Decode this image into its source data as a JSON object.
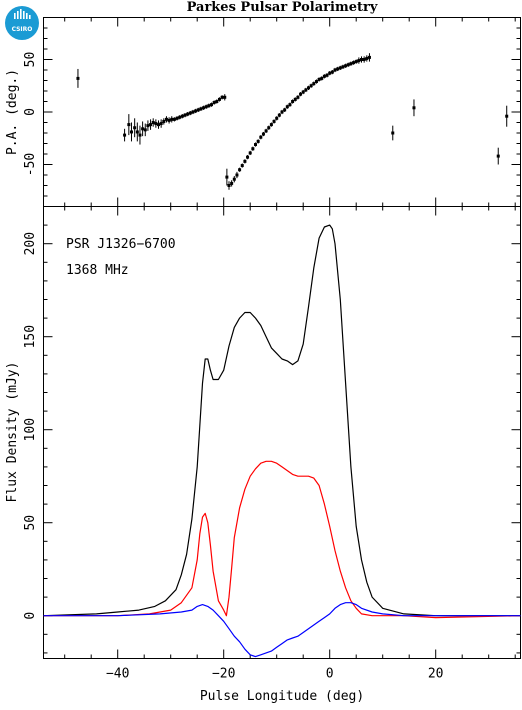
{
  "logo": {
    "text": "CSIRO",
    "color": "#1b9bd4"
  },
  "chart_data": [
    {
      "type": "scatter",
      "title": "Parkes Pulsar Polarimetry",
      "xlabel": "",
      "ylabel": "P.A. (deg.)",
      "xlim": [
        -54,
        36
      ],
      "ylim": [
        -90,
        90
      ],
      "yticks": [
        -50,
        0,
        50
      ],
      "series": [
        {
          "color": "#000000",
          "x": [
            -47.5,
            -38.7,
            -37.9,
            -37.4,
            -36.8,
            -36.3,
            -35.8,
            -35.3,
            -34.8,
            -34.3,
            -33.8,
            -33.3,
            -32.8,
            -32.3,
            -31.8,
            -31.3,
            -30.8,
            -30.3,
            -29.8,
            -29.3,
            -28.8,
            -28.3,
            -27.8,
            -27.3,
            -26.8,
            -26.3,
            -25.8,
            -25.3,
            -24.8,
            -24.3,
            -23.8,
            -23.3,
            -22.8,
            -22.3,
            -21.8,
            -21.3,
            -20.8,
            -20.3,
            -19.8,
            -19.4,
            -19.0,
            -18.5,
            -18.0,
            -17.5,
            -17.0,
            -16.5,
            -16.0,
            -15.5,
            -15.0,
            -14.5,
            -14.0,
            -13.5,
            -13.0,
            -12.5,
            -12.0,
            -11.5,
            -11.0,
            -10.5,
            -10.0,
            -9.5,
            -9.0,
            -8.5,
            -8.0,
            -7.5,
            -7.0,
            -6.5,
            -6.0,
            -5.5,
            -5.0,
            -4.5,
            -4.0,
            -3.5,
            -3.0,
            -2.5,
            -2.0,
            -1.5,
            -1.0,
            -0.5,
            0.0,
            0.5,
            1.0,
            1.5,
            2.0,
            2.5,
            3.0,
            3.5,
            4.0,
            4.5,
            5.0,
            5.5,
            6.0,
            6.5,
            7.0,
            7.5,
            11.9,
            15.9,
            31.8,
            33.4
          ],
          "y": [
            32,
            -22,
            -12,
            -19,
            -15,
            -19,
            -22,
            -16,
            -17,
            -13,
            -12,
            -10,
            -11,
            -12,
            -11,
            -9,
            -7,
            -8,
            -7,
            -7,
            -6,
            -5,
            -4,
            -3,
            -2,
            -1,
            0,
            1,
            2,
            3,
            4,
            5,
            6,
            7,
            9,
            10,
            12,
            14,
            14,
            -62,
            -70,
            -68,
            -64,
            -60,
            -55,
            -51,
            -47,
            -43,
            -39,
            -35,
            -31,
            -28,
            -24,
            -21,
            -18,
            -15,
            -12,
            -9,
            -6,
            -3,
            0,
            2,
            5,
            7,
            10,
            12,
            14,
            17,
            19,
            21,
            23,
            25,
            27,
            29,
            31,
            32,
            34,
            35,
            37,
            38,
            40,
            41,
            42,
            43,
            44,
            45,
            46,
            47,
            48,
            49,
            50,
            50,
            51,
            52,
            -20,
            4,
            -42,
            -4
          ],
          "err": [
            9,
            6,
            10,
            9,
            9,
            9,
            9,
            7,
            6,
            5,
            5,
            4,
            4,
            4,
            4,
            3,
            3,
            3,
            3,
            2,
            2,
            2,
            2,
            2,
            2,
            2,
            2,
            2,
            2,
            2,
            2,
            2,
            2,
            2,
            2,
            2,
            2,
            2,
            3,
            8,
            4,
            3,
            3,
            3,
            2,
            2,
            2,
            2,
            2,
            2,
            2,
            2,
            2,
            2,
            2,
            2,
            2,
            2,
            2,
            2,
            2,
            2,
            2,
            2,
            2,
            2,
            2,
            2,
            2,
            2,
            2,
            2,
            2,
            2,
            2,
            2,
            2,
            2,
            2,
            2,
            2,
            2,
            2,
            2,
            2,
            2,
            2,
            2,
            2,
            3,
            3,
            3,
            3,
            4,
            7,
            8,
            8,
            10
          ]
        }
      ]
    },
    {
      "type": "line",
      "title": "",
      "xlabel": "Pulse Longitude (deg)",
      "ylabel": "Flux Density (mJy)",
      "xlim": [
        -54,
        36
      ],
      "ylim": [
        -23,
        220
      ],
      "xticks": [
        -40,
        -20,
        0,
        20
      ],
      "yticks": [
        0,
        50,
        100,
        150,
        200
      ],
      "annotations": [
        "PSR J1326−6700",
        "1368 MHz"
      ],
      "series": [
        {
          "color": "#000000",
          "x": [
            -54,
            -44,
            -40,
            -36,
            -33,
            -31,
            -29,
            -28,
            -27,
            -26,
            -25,
            -24.5,
            -24,
            -23.5,
            -23,
            -22.5,
            -22,
            -21,
            -20,
            -19,
            -18,
            -17,
            -16,
            -15,
            -14,
            -13,
            -12,
            -11,
            -10,
            -9,
            -8,
            -7,
            -6,
            -5,
            -4,
            -3,
            -2,
            -1,
            0,
            0.5,
            1,
            2,
            3,
            4,
            5,
            6,
            7,
            8,
            10,
            14,
            20,
            30,
            36
          ],
          "y": [
            0,
            1,
            2,
            3,
            5,
            8,
            14,
            22,
            33,
            52,
            80,
            102,
            125,
            138,
            138,
            132,
            127,
            127,
            132,
            145,
            155,
            160,
            163,
            163,
            160,
            156,
            150,
            144,
            141,
            138,
            137,
            135,
            137,
            146,
            166,
            187,
            203,
            209,
            210,
            208,
            200,
            170,
            125,
            80,
            48,
            30,
            18,
            10,
            4,
            1,
            0,
            0,
            0
          ]
        },
        {
          "color": "#ff0000",
          "x": [
            -54,
            -40,
            -34,
            -30,
            -28,
            -26,
            -25,
            -24.5,
            -24,
            -23.5,
            -23,
            -22.5,
            -22,
            -21,
            -20,
            -19.5,
            -19,
            -18.5,
            -18,
            -17,
            -16,
            -15,
            -14,
            -13,
            -12,
            -11,
            -10,
            -9,
            -8,
            -7,
            -6,
            -5,
            -4,
            -3,
            -2,
            -1,
            0,
            1,
            2,
            3,
            4,
            5,
            6,
            8,
            10,
            14,
            20,
            36
          ],
          "y": [
            0,
            0,
            1,
            3,
            7,
            15,
            30,
            44,
            53,
            55,
            50,
            38,
            24,
            8,
            3,
            0,
            10,
            26,
            42,
            58,
            68,
            75,
            79,
            82,
            83,
            83,
            82,
            80,
            78,
            76,
            75,
            75,
            75,
            74,
            70,
            60,
            48,
            35,
            24,
            15,
            8,
            4,
            1,
            0,
            0,
            0,
            -1,
            0
          ]
        },
        {
          "color": "#0000ff",
          "x": [
            -54,
            -40,
            -32,
            -28,
            -26,
            -25,
            -24,
            -23,
            -22,
            -21,
            -20,
            -19,
            -18,
            -17,
            -16,
            -15,
            -14,
            -13,
            -12,
            -11,
            -10,
            -9,
            -8,
            -7,
            -6,
            -5,
            -4,
            -3,
            -2,
            -1,
            0,
            1,
            2,
            3,
            4,
            5,
            6,
            8,
            10,
            14,
            20,
            36
          ],
          "y": [
            0,
            0,
            1,
            2,
            3,
            5,
            6,
            5,
            3,
            0,
            -3,
            -7,
            -11,
            -14,
            -18,
            -21,
            -22,
            -21,
            -20,
            -19,
            -17,
            -15,
            -13,
            -12,
            -11,
            -9,
            -7,
            -5,
            -3,
            -1,
            1,
            4,
            6,
            7,
            7,
            6,
            4,
            2,
            1,
            0,
            0,
            0
          ]
        }
      ]
    }
  ]
}
